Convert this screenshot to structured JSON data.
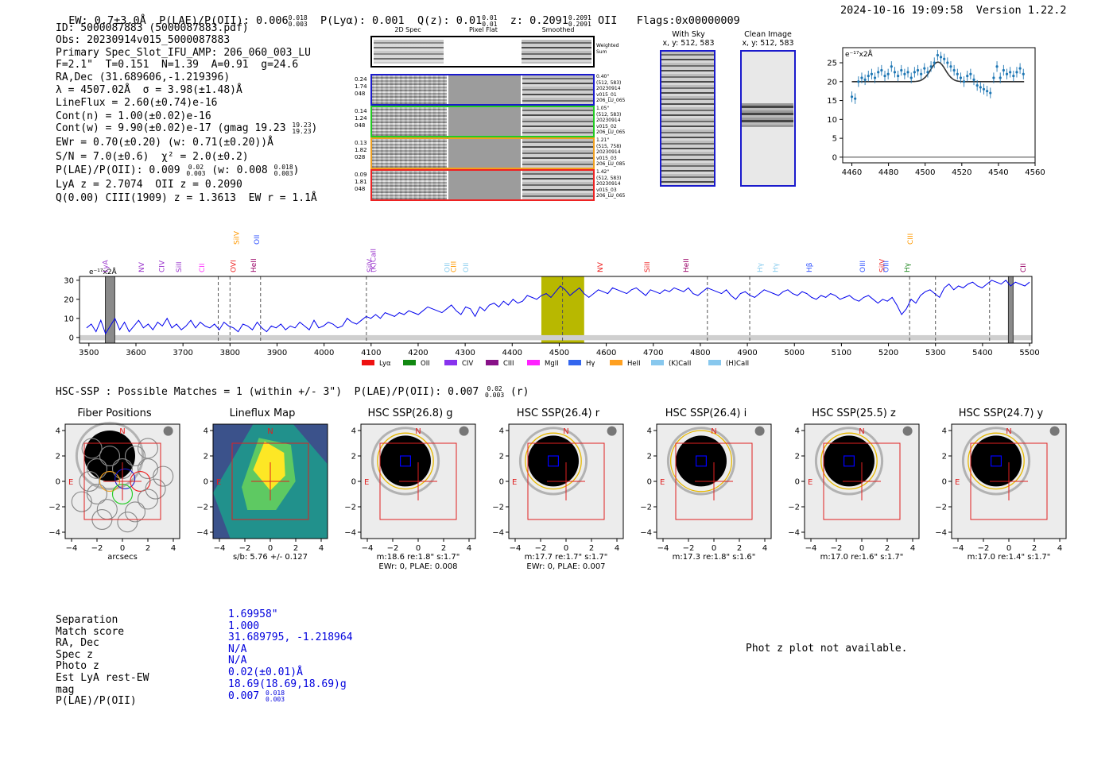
{
  "header": {
    "ew": "EW: 0.7±3.0Å",
    "plae_label": "P(LAE)/P(OII): 0.006",
    "plae_hi": "0.018",
    "plae_lo": "0.003",
    "plya": "P(Lyα): 0.001",
    "qz": "Q(z): 0.01",
    "qz_hi": "0.01",
    "qz_lo": "0.01",
    "z": "z: 0.2091",
    "z_hi": "0.2091",
    "z_lo": "0.2091",
    "z_line": "OII",
    "flags": "Flags:0x00000009",
    "timestamp": "2024-10-16 19:09:58",
    "version": "Version 1.22.2"
  },
  "info": {
    "lines": [
      "ID: 5000087883 (5000087883.pdf)",
      "Obs: 20230914v015_5000087883",
      "Primary Spec_Slot_IFU_AMP: 206_060_003_LU",
      "F=2.1\"  T=0.151  N=1.39  A=0.91  g=24.6",
      "RA,Dec (31.689606,-1.219396)",
      "λ = 4507.02Å  σ = 3.98(±1.48)Å",
      "LineFlux = 2.60(±0.74)e-16",
      "Cont(n) = 1.00(±0.02)e-16"
    ],
    "contw": "Cont(w) = 9.90(±0.02)e-17 (gmag 19.23",
    "contw_hi": "19.23",
    "contw_lo": "19.23",
    "contw_end": ")",
    "ewr": "EWr = 0.70(±0.20) (w: 0.71(±0.20))Å",
    "sn": "S/N = 7.0(±0.6)  χ² = 2.0(±0.2)",
    "plae": "P(LAE)/P(OII): 0.009",
    "plae_hi": "0.02",
    "plae_lo": "0.003",
    "plae_w": "(w: 0.008",
    "plae_w_hi": "0.018",
    "plae_w_lo": "0.003",
    "plae_w_end": ")",
    "lya": "LyA z = 2.7074  OII z = 0.2090",
    "q": "Q(0.00) CIII(1909) z = 1.3613  EW r = 1.1Å"
  },
  "cutouts": {
    "col_titles": [
      "2D Spec",
      "Pixel Flat",
      "Smoothed"
    ],
    "weighted_sum": "Weighted\nSum",
    "rows": [
      {
        "left": "0.24\n1.74\n048",
        "right": "0.40\"\n(512, 583)\n20230914\nv015_01\n206_LU_065",
        "color": "#1a1acc"
      },
      {
        "left": "0.14\n1.24\n048",
        "right": "1.05\"\n(512, 583)\n20230914\nv015_02\n206_LU_065",
        "color": "#22cc22"
      },
      {
        "left": "0.13\n1.82\n028",
        "right": "1.21\"\n(515, 758)\n20230914\nv015_03\n206_LU_085",
        "color": "#f0a020"
      },
      {
        "left": "0.09\n1.81\n048",
        "right": "1.42\"\n(512, 583)\n20230914\nv015_03\n206_LU_065",
        "color": "#ee2222"
      }
    ],
    "with_sky": "With Sky",
    "with_sky_xy": "x, y: 512, 583",
    "clean": "Clean Image",
    "clean_xy": "x, y: 512, 583"
  },
  "zoom_plot": {
    "unit": "e⁻¹⁷x2Å",
    "xticks": [
      "4460",
      "4480",
      "4500",
      "4520",
      "4540",
      "4560"
    ],
    "yticks": [
      "25",
      "20",
      "15",
      "10",
      "5",
      "0"
    ],
    "points": [
      16,
      15.5,
      20,
      21,
      20.5,
      21.5,
      22,
      21,
      22.5,
      23,
      21.5,
      22,
      24,
      22.5,
      21.5,
      23,
      22,
      22.5,
      21,
      22.5,
      23,
      22,
      23.5,
      22.5,
      24,
      25,
      27,
      26.5,
      26,
      25,
      24,
      23,
      22,
      21,
      20,
      21.5,
      22,
      20.5,
      19,
      18.5,
      18,
      17.5,
      17,
      21,
      24,
      21,
      23,
      22,
      22.5,
      21.5,
      22.5,
      23.5,
      22
    ]
  },
  "spectrum": {
    "unit": "e⁻¹⁷x2Å",
    "xticks": [
      "3500",
      "3600",
      "3700",
      "3800",
      "3900",
      "4000",
      "4100",
      "4200",
      "4300",
      "4400",
      "4500",
      "4600",
      "4700",
      "4800",
      "4900",
      "5000",
      "5100",
      "5200",
      "5300",
      "5400",
      "5500"
    ],
    "yticks": [
      "30",
      "20",
      "10",
      "0"
    ],
    "line_labels": [
      {
        "t": "LyA",
        "c": "#9933cc",
        "w": 3540
      },
      {
        "t": "NV",
        "c": "#9933cc",
        "w": 3610
      },
      {
        "t": "CIV",
        "c": "#9933cc",
        "w": 3660
      },
      {
        "t": "SiII",
        "c": "#9933cc",
        "w": 3690
      },
      {
        "t": "CII",
        "c": "#ff33ff",
        "w": 3745
      },
      {
        "t": "SiIV",
        "c": "#ff9900",
        "w": 3812
      },
      {
        "t": "OVI",
        "c": "#ee2222",
        "w": 3812
      },
      {
        "t": "OII",
        "c": "#3355ff",
        "w": 3855
      },
      {
        "t": "HeII",
        "c": "#990066",
        "w": 3855
      },
      {
        "t": "SiIV",
        "c": "#9933cc",
        "w": 4095
      },
      {
        "t": "(K)CaII",
        "c": "#9933cc",
        "w": 4110
      },
      {
        "t": "OII",
        "c": "#88ccee",
        "w": 4260
      },
      {
        "t": "CIII",
        "c": "#ff9900",
        "w": 4280
      },
      {
        "t": "OII",
        "c": "#88ccee",
        "w": 4300
      },
      {
        "t": "NV",
        "c": "#ee2222",
        "w": 4592
      },
      {
        "t": "SiII",
        "c": "#ee2222",
        "w": 4685
      },
      {
        "t": "HeII",
        "c": "#990066",
        "w": 4775
      },
      {
        "t": "Hγ",
        "c": "#88ccee",
        "w": 4925
      },
      {
        "t": "Hγ",
        "c": "#88ccee",
        "w": 4965
      },
      {
        "t": "Hβ",
        "c": "#3355ff",
        "w": 5030
      },
      {
        "t": "OIII",
        "c": "#3355ff",
        "w": 5150
      },
      {
        "t": "SiIV",
        "c": "#ee2222",
        "w": 5185
      },
      {
        "t": "OIII",
        "c": "#3355ff",
        "w": 5200
      },
      {
        "t": "CIII",
        "c": "#ff9900",
        "w": 5245
      },
      {
        "t": "Hγ",
        "c": "#228822",
        "w": 5245
      },
      {
        "t": "CII",
        "c": "#990066",
        "w": 5485
      }
    ],
    "legend": [
      {
        "t": "Lyα",
        "c": "#ee1111"
      },
      {
        "t": "OII",
        "c": "#118811"
      },
      {
        "t": "CIV",
        "c": "#8833ee"
      },
      {
        "t": "CIII",
        "c": "#881188"
      },
      {
        "t": "MgII",
        "c": "#ff22ff"
      },
      {
        "t": "Hγ",
        "c": "#3366ee"
      },
      {
        "t": "HeII",
        "c": "#ffa020"
      },
      {
        "t": "(K)CaII",
        "c": "#88c8ee"
      },
      {
        "t": "(H)CaII",
        "c": "#88c8ee"
      }
    ],
    "flux": [
      5,
      7,
      3,
      9,
      2,
      6,
      10,
      4,
      8,
      3,
      6,
      9,
      5,
      7,
      4,
      8,
      6,
      10,
      5,
      7,
      4,
      6,
      9,
      5,
      8,
      6,
      5,
      7,
      4,
      8,
      6,
      5,
      3,
      7,
      6,
      4,
      8,
      5,
      3,
      6,
      5,
      7,
      4,
      6,
      5,
      8,
      6,
      4,
      9,
      5,
      6,
      8,
      7,
      5,
      6,
      10,
      8,
      7,
      9,
      11,
      10,
      12,
      10,
      13,
      12,
      11,
      13,
      12,
      14,
      13,
      12,
      14,
      16,
      15,
      14,
      13,
      15,
      17,
      14,
      12,
      16,
      15,
      11,
      16,
      14,
      17,
      18,
      16,
      19,
      17,
      20,
      18,
      19,
      22,
      21,
      20,
      22,
      23,
      21,
      24,
      27,
      25,
      22,
      24,
      26,
      23,
      21,
      23,
      25,
      24,
      23,
      26,
      25,
      24,
      23,
      25,
      26,
      24,
      22,
      25,
      24,
      23,
      25,
      24,
      26,
      25,
      24,
      26,
      23,
      22,
      24,
      26,
      25,
      24,
      23,
      25,
      22,
      20,
      23,
      24,
      22,
      21,
      23,
      25,
      24,
      23,
      22,
      24,
      25,
      23,
      22,
      24,
      23,
      21,
      20,
      22,
      21,
      23,
      22,
      20,
      21,
      22,
      20,
      19,
      21,
      22,
      20,
      18,
      20,
      19,
      21,
      17,
      12,
      15,
      20,
      18,
      22,
      24,
      25,
      23,
      21,
      26,
      28,
      25,
      27,
      26,
      28,
      29,
      27,
      26,
      28,
      30,
      29,
      28,
      30,
      27,
      29,
      28,
      27,
      29
    ]
  },
  "hsc_header": "HSC-SSP : Possible Matches = 1 (within +/- 3\")  P(LAE)/P(OII): 0.007",
  "hsc_hi": "0.02",
  "hsc_lo": "0.003",
  "hsc_band": "(r)",
  "panels": [
    {
      "title": "Fiber Positions",
      "cap1": "arcsecs",
      "cap2": ""
    },
    {
      "title": "Lineflux Map",
      "cap1": "s/b: 5.76 +/- 0.127",
      "cap2": ""
    },
    {
      "title": "HSC SSP(26.8) g",
      "cap1": "m:18.6  re:1.8\"  s:1.7\"",
      "cap2": "EWr: 0, PLAE: 0.008"
    },
    {
      "title": "HSC SSP(26.4) r",
      "cap1": "m:17.7  re:1.7\"  s:1.7\"",
      "cap2": "EWr: 0, PLAE: 0.007"
    },
    {
      "title": "HSC SSP(26.4) i",
      "cap1": "m:17.3  re:1.8\"  s:1.6\"",
      "cap2": ""
    },
    {
      "title": "HSC SSP(25.5) z",
      "cap1": "m:17.0  re:1.6\"  s:1.7\"",
      "cap2": ""
    },
    {
      "title": "HSC SSP(24.7) y",
      "cap1": "m:17.0  re:1.4\"  s:1.7\"",
      "cap2": ""
    }
  ],
  "panel_ticks": {
    "x": [
      "−4",
      "−2",
      "0",
      "2",
      "4"
    ],
    "y": [
      "4",
      "2",
      "0",
      "−2",
      "−4"
    ],
    "n": "N",
    "e": "E"
  },
  "table": {
    "keys": [
      "Separation",
      "Match score",
      "RA, Dec",
      "Spec z",
      "Photo z",
      "Est LyA rest-EW",
      "mag",
      "P(LAE)/P(OII)"
    ],
    "vals": [
      "1.69958\"",
      "1.000",
      "31.689795, -1.218964",
      "N/A",
      "N/A",
      "0.02(±0.01)Å",
      "18.69(18.69,18.69)g",
      "0.007"
    ],
    "plae_hi": "0.018",
    "plae_lo": "0.003"
  },
  "photz": "Phot z plot not available.",
  "colors": {
    "accent_blue": "#0000dd",
    "spectrum": "#0000ee",
    "highlight": "#b8b800"
  }
}
